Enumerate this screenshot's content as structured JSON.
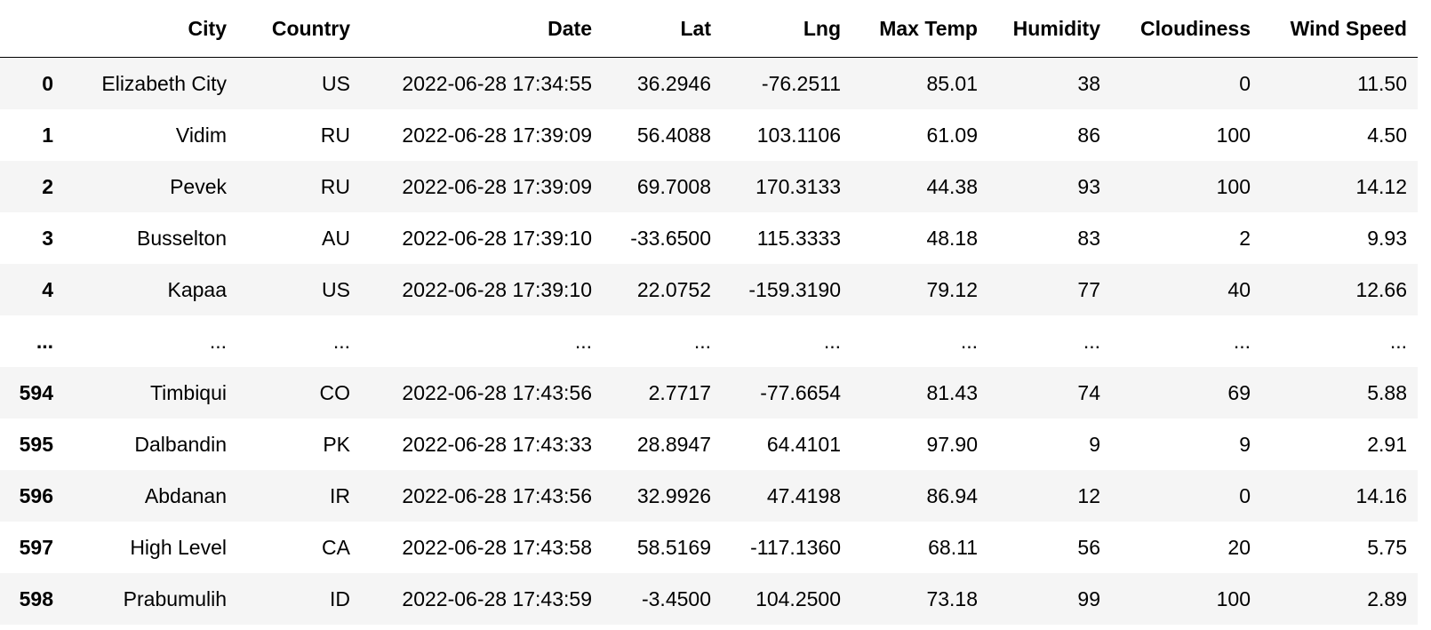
{
  "table": {
    "columns": [
      "",
      "City",
      "Country",
      "Date",
      "Lat",
      "Lng",
      "Max Temp",
      "Humidity",
      "Cloudiness",
      "Wind Speed"
    ],
    "rows": [
      {
        "index": "0",
        "city": "Elizabeth City",
        "country": "US",
        "date": "2022-06-28 17:34:55",
        "lat": "36.2946",
        "lng": "-76.2511",
        "max_temp": "85.01",
        "humidity": "38",
        "cloudiness": "0",
        "wind_speed": "11.50"
      },
      {
        "index": "1",
        "city": "Vidim",
        "country": "RU",
        "date": "2022-06-28 17:39:09",
        "lat": "56.4088",
        "lng": "103.1106",
        "max_temp": "61.09",
        "humidity": "86",
        "cloudiness": "100",
        "wind_speed": "4.50"
      },
      {
        "index": "2",
        "city": "Pevek",
        "country": "RU",
        "date": "2022-06-28 17:39:09",
        "lat": "69.7008",
        "lng": "170.3133",
        "max_temp": "44.38",
        "humidity": "93",
        "cloudiness": "100",
        "wind_speed": "14.12"
      },
      {
        "index": "3",
        "city": "Busselton",
        "country": "AU",
        "date": "2022-06-28 17:39:10",
        "lat": "-33.6500",
        "lng": "115.3333",
        "max_temp": "48.18",
        "humidity": "83",
        "cloudiness": "2",
        "wind_speed": "9.93"
      },
      {
        "index": "4",
        "city": "Kapaa",
        "country": "US",
        "date": "2022-06-28 17:39:10",
        "lat": "22.0752",
        "lng": "-159.3190",
        "max_temp": "79.12",
        "humidity": "77",
        "cloudiness": "40",
        "wind_speed": "12.66"
      },
      {
        "index": "...",
        "city": "...",
        "country": "...",
        "date": "...",
        "lat": "...",
        "lng": "...",
        "max_temp": "...",
        "humidity": "...",
        "cloudiness": "...",
        "wind_speed": "..."
      },
      {
        "index": "594",
        "city": "Timbiqui",
        "country": "CO",
        "date": "2022-06-28 17:43:56",
        "lat": "2.7717",
        "lng": "-77.6654",
        "max_temp": "81.43",
        "humidity": "74",
        "cloudiness": "69",
        "wind_speed": "5.88"
      },
      {
        "index": "595",
        "city": "Dalbandin",
        "country": "PK",
        "date": "2022-06-28 17:43:33",
        "lat": "28.8947",
        "lng": "64.4101",
        "max_temp": "97.90",
        "humidity": "9",
        "cloudiness": "9",
        "wind_speed": "2.91"
      },
      {
        "index": "596",
        "city": "Abdanan",
        "country": "IR",
        "date": "2022-06-28 17:43:56",
        "lat": "32.9926",
        "lng": "47.4198",
        "max_temp": "86.94",
        "humidity": "12",
        "cloudiness": "0",
        "wind_speed": "14.16"
      },
      {
        "index": "597",
        "city": "High Level",
        "country": "CA",
        "date": "2022-06-28 17:43:58",
        "lat": "58.5169",
        "lng": "-117.1360",
        "max_temp": "68.11",
        "humidity": "56",
        "cloudiness": "20",
        "wind_speed": "5.75"
      },
      {
        "index": "598",
        "city": "Prabumulih",
        "country": "ID",
        "date": "2022-06-28 17:43:59",
        "lat": "-3.4500",
        "lng": "104.2500",
        "max_temp": "73.18",
        "humidity": "99",
        "cloudiness": "100",
        "wind_speed": "2.89"
      }
    ]
  }
}
